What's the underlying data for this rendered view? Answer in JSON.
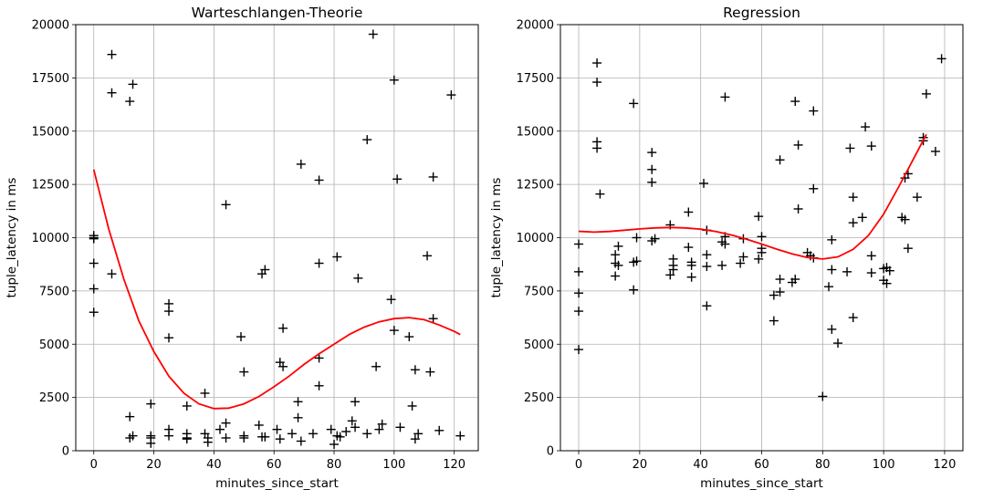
{
  "chart_data": [
    {
      "type": "scatter",
      "title": "Warteschlangen-Theorie",
      "xlabel": "minutes_since_start",
      "ylabel": "tuple_latency in ms",
      "xlim": [
        -6,
        128
      ],
      "ylim": [
        0,
        20000
      ],
      "xticks": [
        0,
        20,
        40,
        60,
        80,
        100,
        120
      ],
      "yticks": [
        0,
        2500,
        5000,
        7500,
        10000,
        12500,
        15000,
        17500,
        20000
      ],
      "grid": true,
      "marker_color": "#000000",
      "line_color": "#ff0000",
      "points": [
        [
          0,
          10100
        ],
        [
          0,
          10000
        ],
        [
          0,
          9950
        ],
        [
          0,
          8800
        ],
        [
          0,
          7600
        ],
        [
          0,
          6500
        ],
        [
          6,
          18600
        ],
        [
          6,
          16800
        ],
        [
          6,
          8300
        ],
        [
          12,
          16400
        ],
        [
          13,
          17200
        ],
        [
          12,
          1600
        ],
        [
          12,
          600
        ],
        [
          13,
          700
        ],
        [
          19,
          2200
        ],
        [
          19,
          700
        ],
        [
          19,
          600
        ],
        [
          19,
          350
        ],
        [
          25,
          6900
        ],
        [
          25,
          6550
        ],
        [
          25,
          5300
        ],
        [
          25,
          1000
        ],
        [
          25,
          700
        ],
        [
          31,
          2100
        ],
        [
          31,
          800
        ],
        [
          31,
          600
        ],
        [
          31,
          550
        ],
        [
          37,
          2700
        ],
        [
          37,
          800
        ],
        [
          38,
          600
        ],
        [
          38,
          400
        ],
        [
          42,
          1000
        ],
        [
          44,
          11550
        ],
        [
          44,
          1300
        ],
        [
          44,
          600
        ],
        [
          49,
          5350
        ],
        [
          50,
          3700
        ],
        [
          50,
          700
        ],
        [
          50,
          600
        ],
        [
          55,
          1200
        ],
        [
          56,
          8300
        ],
        [
          57,
          8500
        ],
        [
          56,
          650
        ],
        [
          57,
          650
        ],
        [
          61,
          1000
        ],
        [
          62,
          4150
        ],
        [
          63,
          3950
        ],
        [
          63,
          5750
        ],
        [
          62,
          550
        ],
        [
          66,
          800
        ],
        [
          68,
          2300
        ],
        [
          68,
          1550
        ],
        [
          69,
          13450
        ],
        [
          69,
          450
        ],
        [
          73,
          800
        ],
        [
          75,
          12700
        ],
        [
          75,
          8800
        ],
        [
          75,
          4350
        ],
        [
          75,
          3050
        ],
        [
          79,
          1000
        ],
        [
          80,
          300
        ],
        [
          81,
          9100
        ],
        [
          81,
          700
        ],
        [
          82,
          650
        ],
        [
          84,
          900
        ],
        [
          86,
          1400
        ],
        [
          87,
          2300
        ],
        [
          87,
          1100
        ],
        [
          88,
          8100
        ],
        [
          91,
          14600
        ],
        [
          91,
          800
        ],
        [
          93,
          19550
        ],
        [
          94,
          3950
        ],
        [
          95,
          1000
        ],
        [
          96,
          1250
        ],
        [
          99,
          7100
        ],
        [
          100,
          17400
        ],
        [
          100,
          5650
        ],
        [
          101,
          12750
        ],
        [
          102,
          1100
        ],
        [
          105,
          5350
        ],
        [
          106,
          2100
        ],
        [
          107,
          3800
        ],
        [
          107,
          550
        ],
        [
          108,
          800
        ],
        [
          111,
          9150
        ],
        [
          112,
          3700
        ],
        [
          113,
          12850
        ],
        [
          113,
          6200
        ],
        [
          115,
          950
        ],
        [
          119,
          16700
        ],
        [
          122,
          700
        ]
      ],
      "fit": [
        [
          0,
          13200
        ],
        [
          5,
          10400
        ],
        [
          10,
          8050
        ],
        [
          15,
          6100
        ],
        [
          20,
          4650
        ],
        [
          25,
          3500
        ],
        [
          30,
          2700
        ],
        [
          35,
          2200
        ],
        [
          40,
          1980
        ],
        [
          45,
          2000
        ],
        [
          50,
          2200
        ],
        [
          55,
          2550
        ],
        [
          60,
          3000
        ],
        [
          65,
          3500
        ],
        [
          70,
          4050
        ],
        [
          75,
          4550
        ],
        [
          80,
          5000
        ],
        [
          85,
          5450
        ],
        [
          90,
          5800
        ],
        [
          95,
          6050
        ],
        [
          100,
          6200
        ],
        [
          105,
          6250
        ],
        [
          110,
          6150
        ],
        [
          115,
          5900
        ],
        [
          120,
          5600
        ],
        [
          122,
          5450
        ]
      ]
    },
    {
      "type": "scatter",
      "title": "Regression",
      "xlabel": "minutes_since_start",
      "ylabel": "tuple_latency in ms",
      "xlim": [
        -6,
        126
      ],
      "ylim": [
        0,
        20000
      ],
      "xticks": [
        0,
        20,
        40,
        60,
        80,
        100,
        120
      ],
      "yticks": [
        0,
        2500,
        5000,
        7500,
        10000,
        12500,
        15000,
        17500,
        20000
      ],
      "grid": true,
      "marker_color": "#000000",
      "line_color": "#ff0000",
      "points": [
        [
          0,
          9700
        ],
        [
          0,
          8400
        ],
        [
          0,
          7400
        ],
        [
          0,
          6550
        ],
        [
          0,
          4750
        ],
        [
          6,
          18200
        ],
        [
          6,
          17300
        ],
        [
          6,
          14500
        ],
        [
          6,
          14200
        ],
        [
          7,
          12050
        ],
        [
          12,
          9200
        ],
        [
          12,
          8800
        ],
        [
          12,
          8200
        ],
        [
          13,
          9600
        ],
        [
          13,
          8700
        ],
        [
          18,
          16300
        ],
        [
          18,
          8850
        ],
        [
          18,
          7550
        ],
        [
          19,
          10000
        ],
        [
          19,
          8900
        ],
        [
          24,
          14000
        ],
        [
          24,
          13200
        ],
        [
          24,
          12600
        ],
        [
          24,
          9850
        ],
        [
          25,
          9950
        ],
        [
          30,
          10600
        ],
        [
          30,
          8250
        ],
        [
          31,
          9000
        ],
        [
          31,
          8700
        ],
        [
          31,
          8500
        ],
        [
          36,
          11200
        ],
        [
          36,
          9550
        ],
        [
          37,
          8850
        ],
        [
          37,
          8700
        ],
        [
          37,
          8150
        ],
        [
          41,
          12550
        ],
        [
          42,
          10350
        ],
        [
          42,
          9200
        ],
        [
          42,
          8650
        ],
        [
          42,
          6800
        ],
        [
          47,
          9800
        ],
        [
          47,
          8700
        ],
        [
          48,
          16600
        ],
        [
          48,
          10050
        ],
        [
          48,
          9700
        ],
        [
          53,
          8800
        ],
        [
          54,
          9950
        ],
        [
          54,
          9100
        ],
        [
          59,
          11000
        ],
        [
          59,
          9000
        ],
        [
          60,
          10050
        ],
        [
          60,
          9500
        ],
        [
          60,
          9300
        ],
        [
          64,
          7300
        ],
        [
          64,
          6100
        ],
        [
          66,
          13650
        ],
        [
          66,
          8050
        ],
        [
          66,
          7450
        ],
        [
          70,
          7900
        ],
        [
          71,
          16400
        ],
        [
          71,
          8050
        ],
        [
          72,
          14350
        ],
        [
          72,
          11350
        ],
        [
          75,
          9300
        ],
        [
          76,
          9150
        ],
        [
          77,
          15950
        ],
        [
          77,
          12300
        ],
        [
          77,
          9050
        ],
        [
          80,
          2550
        ],
        [
          82,
          7700
        ],
        [
          83,
          9900
        ],
        [
          83,
          8500
        ],
        [
          83,
          5700
        ],
        [
          85,
          5050
        ],
        [
          88,
          8400
        ],
        [
          89,
          14200
        ],
        [
          90,
          11900
        ],
        [
          90,
          10700
        ],
        [
          90,
          6250
        ],
        [
          93,
          10950
        ],
        [
          94,
          15200
        ],
        [
          96,
          14300
        ],
        [
          96,
          9150
        ],
        [
          96,
          8350
        ],
        [
          100,
          8550
        ],
        [
          100,
          8000
        ],
        [
          101,
          7850
        ],
        [
          101,
          8600
        ],
        [
          102,
          8450
        ],
        [
          106,
          10950
        ],
        [
          107,
          12800
        ],
        [
          107,
          10850
        ],
        [
          108,
          13000
        ],
        [
          108,
          9500
        ],
        [
          111,
          11900
        ],
        [
          113,
          14700
        ],
        [
          113,
          14550
        ],
        [
          114,
          16750
        ],
        [
          117,
          14050
        ],
        [
          119,
          18400
        ]
      ],
      "fit": [
        [
          0,
          10300
        ],
        [
          5,
          10260
        ],
        [
          10,
          10290
        ],
        [
          15,
          10350
        ],
        [
          20,
          10410
        ],
        [
          25,
          10460
        ],
        [
          30,
          10480
        ],
        [
          35,
          10460
        ],
        [
          40,
          10400
        ],
        [
          45,
          10290
        ],
        [
          50,
          10130
        ],
        [
          55,
          9930
        ],
        [
          60,
          9700
        ],
        [
          65,
          9460
        ],
        [
          70,
          9240
        ],
        [
          75,
          9070
        ],
        [
          80,
          9000
        ],
        [
          85,
          9100
        ],
        [
          90,
          9450
        ],
        [
          95,
          10100
        ],
        [
          100,
          11100
        ],
        [
          105,
          12400
        ],
        [
          110,
          13750
        ],
        [
          114,
          14850
        ]
      ]
    }
  ]
}
